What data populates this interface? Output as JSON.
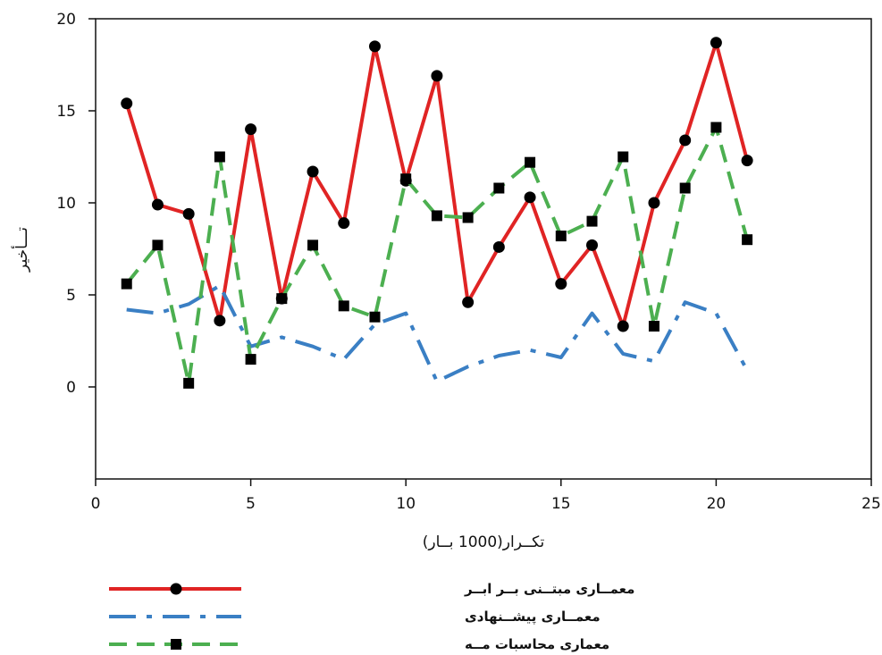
{
  "chart_data": {
    "type": "line",
    "xlabel": "تکــرار(1000 بــار)",
    "ylabel": "تـــأخیر",
    "xlim": [
      0,
      25
    ],
    "ylim": [
      -5,
      20
    ],
    "xticks": [
      0,
      5,
      10,
      15,
      20,
      25
    ],
    "yticks": [
      0,
      5,
      10,
      15,
      20
    ],
    "grid": false,
    "legend_position": "bottom-left",
    "series": [
      {
        "name": "معمــاری مبتــنی بــر ابــر",
        "color": "#e02424",
        "dash": "solid",
        "marker": "circle",
        "x": [
          1,
          2,
          3,
          4,
          5,
          6,
          7,
          8,
          9,
          10,
          11,
          12,
          13,
          14,
          15,
          16,
          17,
          18,
          19,
          20,
          21
        ],
        "y": [
          15.4,
          9.9,
          9.4,
          3.6,
          14.0,
          4.8,
          11.7,
          8.9,
          18.5,
          11.2,
          16.9,
          4.6,
          7.6,
          10.3,
          5.6,
          7.7,
          3.3,
          10.0,
          13.4,
          18.7,
          12.3
        ]
      },
      {
        "name": "معمــاری پیشــنهادی",
        "color": "#3a7fc4",
        "dash": "dashdot",
        "marker": "none",
        "x": [
          1,
          2,
          3,
          4,
          5,
          6,
          7,
          8,
          9,
          10,
          11,
          12,
          13,
          14,
          15,
          16,
          17,
          18,
          19,
          20,
          21
        ],
        "y": [
          4.2,
          4.0,
          4.5,
          5.5,
          2.2,
          2.7,
          2.2,
          1.5,
          3.4,
          4.0,
          0.3,
          1.1,
          1.7,
          2.0,
          1.6,
          4.0,
          1.8,
          1.4,
          4.6,
          4.0,
          0.9
        ]
      },
      {
        "name": "معماری محاسبات مــه",
        "color": "#4caf50",
        "dash": "dashed",
        "marker": "square",
        "x": [
          1,
          2,
          3,
          4,
          5,
          6,
          7,
          8,
          9,
          10,
          11,
          12,
          13,
          14,
          15,
          16,
          17,
          18,
          19,
          20,
          21
        ],
        "y": [
          5.6,
          7.7,
          0.2,
          12.5,
          1.5,
          4.8,
          7.7,
          4.4,
          3.8,
          11.3,
          9.3,
          9.2,
          10.8,
          12.2,
          8.2,
          9.0,
          12.5,
          3.3,
          10.8,
          14.1,
          8.0
        ]
      }
    ]
  }
}
